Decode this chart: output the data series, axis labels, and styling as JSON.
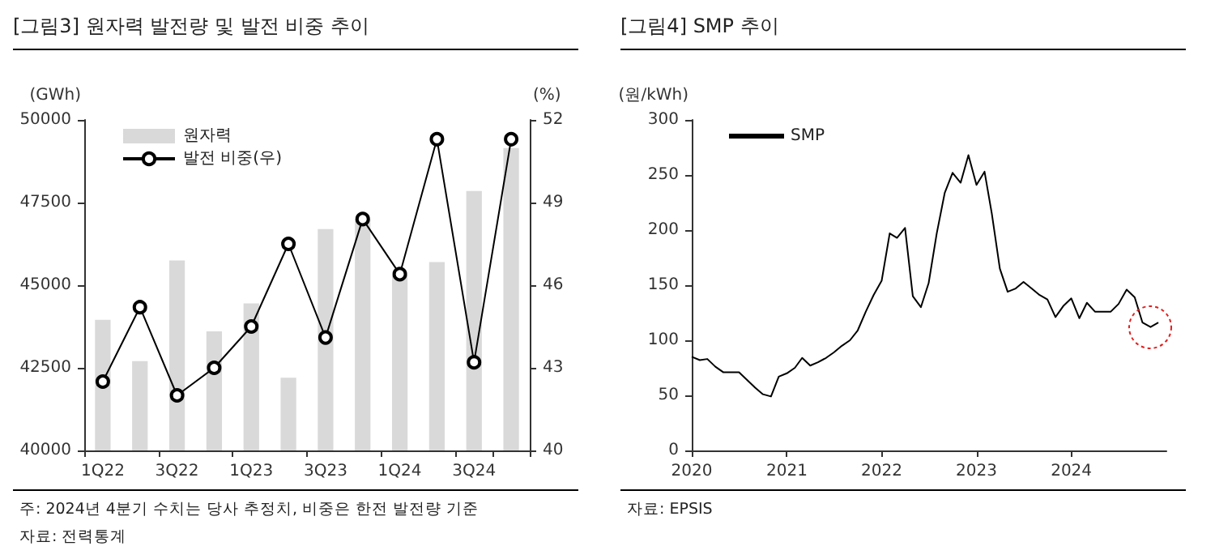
{
  "chart_data": [
    {
      "type": "bar",
      "title": "[그림3]  원자력 발전량 및 발전 비중 추이",
      "ylabel": "(GWh)",
      "y2label": "(%)",
      "categories": [
        "1Q22",
        null,
        "3Q22",
        null,
        "1Q23",
        null,
        "3Q23",
        null,
        "1Q24",
        null,
        "3Q24",
        null
      ],
      "series": [
        {
          "name": "원자력",
          "color": "#d9d9d9",
          "values": [
            43950,
            42700,
            45750,
            43600,
            44450,
            42200,
            46700,
            47000,
            45300,
            45700,
            47850,
            49150
          ]
        },
        {
          "name": "발전 비중(우)",
          "type": "line",
          "axis": "y2",
          "color": "#000000",
          "values": [
            42.5,
            45.2,
            42.0,
            43.0,
            44.5,
            47.5,
            44.1,
            48.4,
            46.4,
            51.3,
            43.2,
            51.3
          ]
        }
      ],
      "ylim": [
        40000,
        50000
      ],
      "yticks": [
        40000,
        42500,
        45000,
        47500,
        50000
      ],
      "y2lim": [
        40,
        52
      ],
      "y2ticks": [
        40,
        43,
        46,
        49,
        52
      ],
      "marker": "circle",
      "legend": "top left",
      "grid": false,
      "annotations": [
        "주: 2024년 4분기 수치는 당사 추정치, 비중은 한전 발전량 기준",
        "자료: 전력통계"
      ]
    },
    {
      "type": "line",
      "title": "[그림4]  SMP 추이",
      "ylabel": "(원/kWh)",
      "x": [
        "2020-01",
        "2020-02",
        "2020-03",
        "2020-04",
        "2020-05",
        "2020-06",
        "2020-07",
        "2020-08",
        "2020-09",
        "2020-10",
        "2020-11",
        "2020-12",
        "2021-01",
        "2021-02",
        "2021-03",
        "2021-04",
        "2021-05",
        "2021-06",
        "2021-07",
        "2021-08",
        "2021-09",
        "2021-10",
        "2021-11",
        "2021-12",
        "2022-01",
        "2022-02",
        "2022-03",
        "2022-04",
        "2022-05",
        "2022-06",
        "2022-07",
        "2022-08",
        "2022-09",
        "2022-10",
        "2022-11",
        "2022-12",
        "2023-01",
        "2023-02",
        "2023-03",
        "2023-04",
        "2023-05",
        "2023-06",
        "2023-07",
        "2023-08",
        "2023-09",
        "2023-10",
        "2023-11",
        "2023-12",
        "2024-01",
        "2024-02",
        "2024-03",
        "2024-04",
        "2024-05",
        "2024-06",
        "2024-07",
        "2024-08",
        "2024-09",
        "2024-10",
        "2024-11",
        "2024-12"
      ],
      "series": [
        {
          "name": "SMP",
          "color": "#000000",
          "values": [
            85,
            82,
            83,
            76,
            71,
            71,
            71,
            64,
            57,
            51,
            49,
            67,
            70,
            75,
            84,
            77,
            80,
            84,
            89,
            95,
            100,
            109,
            126,
            141,
            154,
            197,
            193,
            202,
            140,
            130,
            152,
            197,
            234,
            252,
            243,
            268,
            241,
            253,
            215,
            165,
            144,
            147,
            153,
            147,
            141,
            137,
            121,
            131,
            138,
            120,
            134,
            126,
            126,
            126,
            133,
            146,
            139,
            116,
            112,
            116
          ]
        }
      ],
      "xlim": [
        "2020-01",
        "2025-01"
      ],
      "xticks": [
        "2020",
        "2021",
        "2022",
        "2023",
        "2024"
      ],
      "ylim": [
        0,
        300
      ],
      "yticks": [
        0,
        50,
        100,
        150,
        200,
        250,
        300
      ],
      "marker": "none",
      "legend": "top left",
      "grid": false,
      "annotations": [
        "자료: EPSIS"
      ]
    }
  ]
}
